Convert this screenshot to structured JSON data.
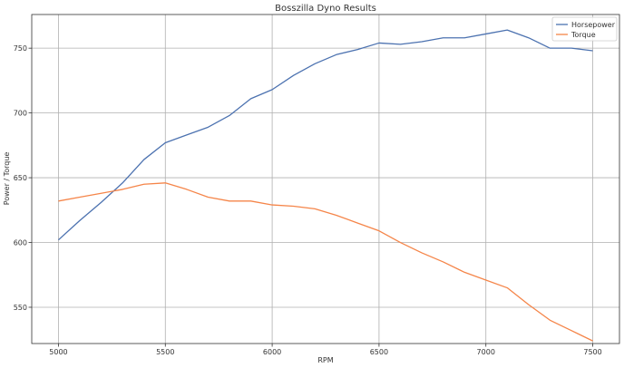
{
  "chart_data": {
    "type": "line",
    "title": "Bosszilla Dyno Results",
    "xlabel": "RPM",
    "ylabel": "Power / Torque",
    "xlim": [
      4875,
      7625
    ],
    "ylim": [
      522,
      776
    ],
    "xticks": [
      5000,
      5500,
      6000,
      6500,
      7000,
      7500
    ],
    "yticks": [
      550,
      600,
      650,
      700,
      750
    ],
    "grid": true,
    "legend_position": "top-right",
    "x": [
      5000,
      5100,
      5200,
      5300,
      5400,
      5500,
      5600,
      5700,
      5800,
      5900,
      6000,
      6100,
      6200,
      6300,
      6400,
      6500,
      6600,
      6700,
      6800,
      6900,
      7000,
      7100,
      7200,
      7300,
      7400,
      7500
    ],
    "series": [
      {
        "name": "Horsepower",
        "color": "#4c72b0",
        "values": [
          602,
          617,
          631,
          646,
          664,
          677,
          683,
          689,
          698,
          711,
          718,
          729,
          738,
          745,
          749,
          754,
          753,
          755,
          758,
          758,
          761,
          764,
          758,
          750,
          750,
          748
        ]
      },
      {
        "name": "Torque",
        "color": "#f58549",
        "values": [
          632,
          635,
          638,
          641,
          645,
          646,
          641,
          635,
          632,
          632,
          629,
          628,
          626,
          621,
          615,
          609,
          600,
          592,
          585,
          577,
          571,
          565,
          552,
          540,
          532,
          524
        ]
      }
    ]
  }
}
